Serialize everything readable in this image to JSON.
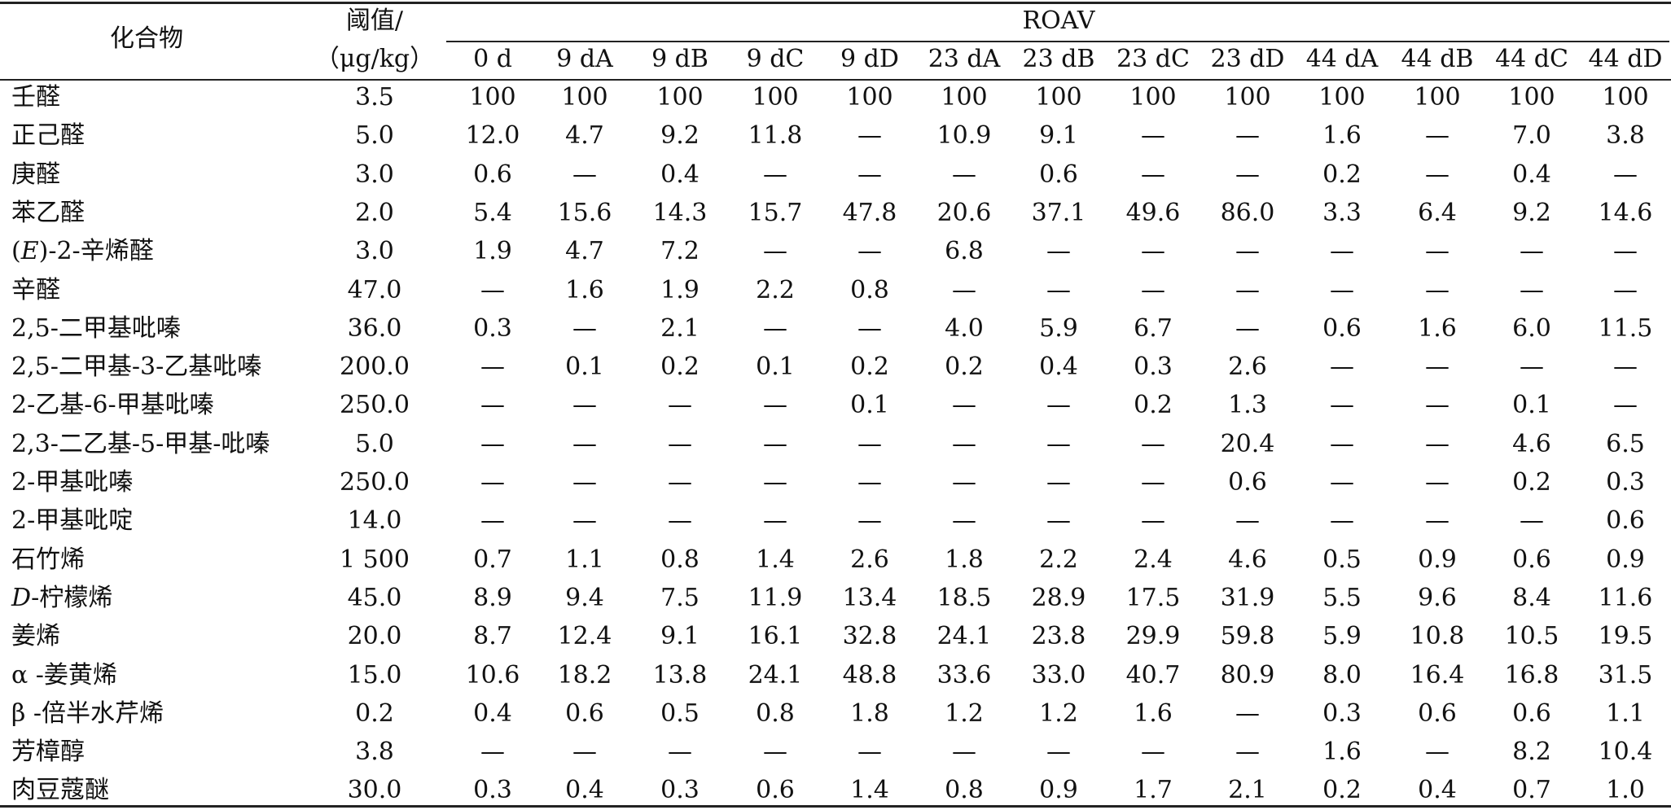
{
  "table": {
    "header": {
      "compound": "化合物",
      "threshold_line1": "阈值/",
      "threshold_line2": "（μg/kg）",
      "roav": "ROAV",
      "samples": [
        "0 d",
        "9 dA",
        "9 dB",
        "9 dC",
        "9 dD",
        "23 dA",
        "23 dB",
        "23 dC",
        "23 dD",
        "44 dA",
        "44 dB",
        "44 dC",
        "44 dD"
      ]
    },
    "rows": [
      {
        "name": "壬醛",
        "threshold": "3.5",
        "values": [
          "100",
          "100",
          "100",
          "100",
          "100",
          "100",
          "100",
          "100",
          "100",
          "100",
          "100",
          "100",
          "100"
        ]
      },
      {
        "name": "正己醛",
        "threshold": "5.0",
        "values": [
          "12.0",
          "4.7",
          "9.2",
          "11.8",
          "—",
          "10.9",
          "9.1",
          "—",
          "—",
          "1.6",
          "—",
          "7.0",
          "3.8"
        ]
      },
      {
        "name": "庚醛",
        "threshold": "3.0",
        "values": [
          "0.6",
          "—",
          "0.4",
          "—",
          "—",
          "—",
          "0.6",
          "—",
          "—",
          "0.2",
          "—",
          "0.4",
          "—"
        ]
      },
      {
        "name": "苯乙醛",
        "threshold": "2.0",
        "values": [
          "5.4",
          "15.6",
          "14.3",
          "15.7",
          "47.8",
          "20.6",
          "37.1",
          "49.6",
          "86.0",
          "3.3",
          "6.4",
          "9.2",
          "14.6"
        ]
      },
      {
        "name_prefix": "(",
        "name_italic": "E",
        "name": ")-2-辛烯醛",
        "threshold": "3.0",
        "values": [
          "1.9",
          "4.7",
          "7.2",
          "—",
          "—",
          "6.8",
          "—",
          "—",
          "—",
          "—",
          "—",
          "—",
          "—"
        ]
      },
      {
        "name": "辛醛",
        "threshold": "47.0",
        "values": [
          "—",
          "1.6",
          "1.9",
          "2.2",
          "0.8",
          "—",
          "—",
          "—",
          "—",
          "—",
          "—",
          "—",
          "—"
        ]
      },
      {
        "name": "2,5-二甲基吡嗪",
        "threshold": "36.0",
        "values": [
          "0.3",
          "—",
          "2.1",
          "—",
          "—",
          "4.0",
          "5.9",
          "6.7",
          "—",
          "0.6",
          "1.6",
          "6.0",
          "11.5"
        ]
      },
      {
        "name": "2,5-二甲基-3-乙基吡嗪",
        "threshold": "200.0",
        "values": [
          "—",
          "0.1",
          "0.2",
          "0.1",
          "0.2",
          "0.2",
          "0.4",
          "0.3",
          "2.6",
          "—",
          "—",
          "—",
          "—"
        ]
      },
      {
        "name": "2-乙基-6-甲基吡嗪",
        "threshold": "250.0",
        "values": [
          "—",
          "—",
          "—",
          "—",
          "0.1",
          "—",
          "—",
          "0.2",
          "1.3",
          "—",
          "—",
          "0.1",
          "—"
        ]
      },
      {
        "name": "2,3-二乙基-5-甲基-吡嗪",
        "threshold": "5.0",
        "values": [
          "—",
          "—",
          "—",
          "—",
          "—",
          "—",
          "—",
          "—",
          "20.4",
          "—",
          "—",
          "4.6",
          "6.5"
        ]
      },
      {
        "name": "2-甲基吡嗪",
        "threshold": "250.0",
        "values": [
          "—",
          "—",
          "—",
          "—",
          "—",
          "—",
          "—",
          "—",
          "0.6",
          "—",
          "—",
          "0.2",
          "0.3"
        ]
      },
      {
        "name": "2-甲基吡啶",
        "threshold": "14.0",
        "values": [
          "—",
          "—",
          "—",
          "—",
          "—",
          "—",
          "—",
          "—",
          "—",
          "—",
          "—",
          "—",
          "0.6"
        ]
      },
      {
        "name": "石竹烯",
        "threshold": "1 500",
        "values": [
          "0.7",
          "1.1",
          "0.8",
          "1.4",
          "2.6",
          "1.8",
          "2.2",
          "2.4",
          "4.6",
          "0.5",
          "0.9",
          "0.6",
          "0.9"
        ]
      },
      {
        "name_italic": "D",
        "name": "-柠檬烯",
        "threshold": "45.0",
        "values": [
          "8.9",
          "9.4",
          "7.5",
          "11.9",
          "13.4",
          "18.5",
          "28.9",
          "17.5",
          "31.9",
          "5.5",
          "9.6",
          "8.4",
          "11.6"
        ]
      },
      {
        "name": "姜烯",
        "threshold": "20.0",
        "values": [
          "8.7",
          "12.4",
          "9.1",
          "16.1",
          "32.8",
          "24.1",
          "23.8",
          "29.9",
          "59.8",
          "5.9",
          "10.8",
          "10.5",
          "19.5"
        ]
      },
      {
        "name": "α -姜黄烯",
        "threshold": "15.0",
        "values": [
          "10.6",
          "18.2",
          "13.8",
          "24.1",
          "48.8",
          "33.6",
          "33.0",
          "40.7",
          "80.9",
          "8.0",
          "16.4",
          "16.8",
          "31.5"
        ]
      },
      {
        "name": "β -倍半水芹烯",
        "threshold": "0.2",
        "values": [
          "0.4",
          "0.6",
          "0.5",
          "0.8",
          "1.8",
          "1.2",
          "1.2",
          "1.6",
          "—",
          "0.3",
          "0.6",
          "0.6",
          "1.1"
        ]
      },
      {
        "name": "芳樟醇",
        "threshold": "3.8",
        "values": [
          "—",
          "—",
          "—",
          "—",
          "—",
          "—",
          "—",
          "—",
          "—",
          "1.6",
          "—",
          "8.2",
          "10.4"
        ]
      },
      {
        "name": "肉豆蔻醚",
        "threshold": "30.0",
        "values": [
          "0.3",
          "0.4",
          "0.3",
          "0.6",
          "1.4",
          "0.8",
          "0.9",
          "1.7",
          "2.1",
          "0.2",
          "0.4",
          "0.7",
          "1.0"
        ]
      }
    ]
  }
}
